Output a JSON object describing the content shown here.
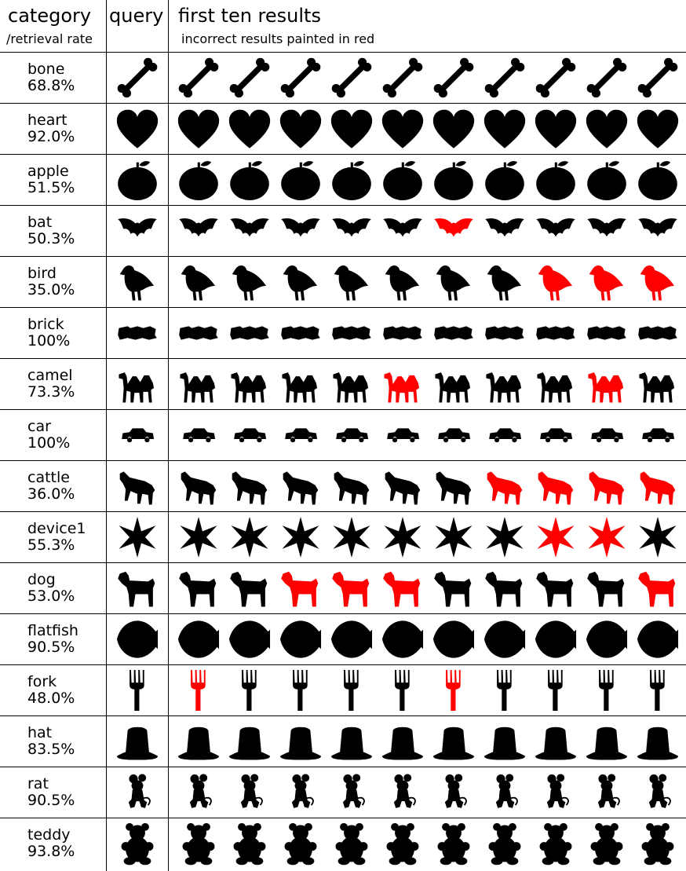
{
  "header": {
    "category": "category",
    "rate": "/retrieval rate",
    "query": "query",
    "results": "first ten results",
    "note": "incorrect results painted in red"
  },
  "colors": {
    "correct": "#000000",
    "incorrect": "#ff0000"
  },
  "rows": [
    {
      "name": "bone",
      "rate": "68.8%",
      "shape": "bone-icon",
      "incorrect": []
    },
    {
      "name": "heart",
      "rate": "92.0%",
      "shape": "heart-icon",
      "incorrect": []
    },
    {
      "name": "apple",
      "rate": "51.5%",
      "shape": "apple-icon",
      "incorrect": []
    },
    {
      "name": "bat",
      "rate": "50.3%",
      "shape": "bat-icon",
      "incorrect": [
        6
      ]
    },
    {
      "name": "bird",
      "rate": "35.0%",
      "shape": "bird-icon",
      "incorrect": [
        8,
        9,
        10
      ]
    },
    {
      "name": "brick",
      "rate": "100%",
      "shape": "brick-icon",
      "incorrect": []
    },
    {
      "name": "camel",
      "rate": "73.3%",
      "shape": "camel-icon",
      "incorrect": [
        5,
        9
      ]
    },
    {
      "name": "car",
      "rate": "100%",
      "shape": "car-icon",
      "incorrect": []
    },
    {
      "name": "cattle",
      "rate": "36.0%",
      "shape": "cattle-icon",
      "incorrect": [
        7,
        8,
        9,
        10
      ]
    },
    {
      "name": "device1",
      "rate": "55.3%",
      "shape": "star-icon",
      "incorrect": [
        8,
        9
      ]
    },
    {
      "name": "dog",
      "rate": "53.0%",
      "shape": "dog-icon",
      "incorrect": [
        3,
        4,
        5,
        10
      ]
    },
    {
      "name": "flatfish",
      "rate": "90.5%",
      "shape": "flatfish-icon",
      "incorrect": []
    },
    {
      "name": "fork",
      "rate": "48.0%",
      "shape": "fork-icon",
      "incorrect": [
        1,
        6
      ]
    },
    {
      "name": "hat",
      "rate": "83.5%",
      "shape": "hat-icon",
      "incorrect": []
    },
    {
      "name": "rat",
      "rate": "90.5%",
      "shape": "rat-icon",
      "incorrect": []
    },
    {
      "name": "teddy",
      "rate": "93.8%",
      "shape": "teddy-icon",
      "incorrect": []
    }
  ]
}
